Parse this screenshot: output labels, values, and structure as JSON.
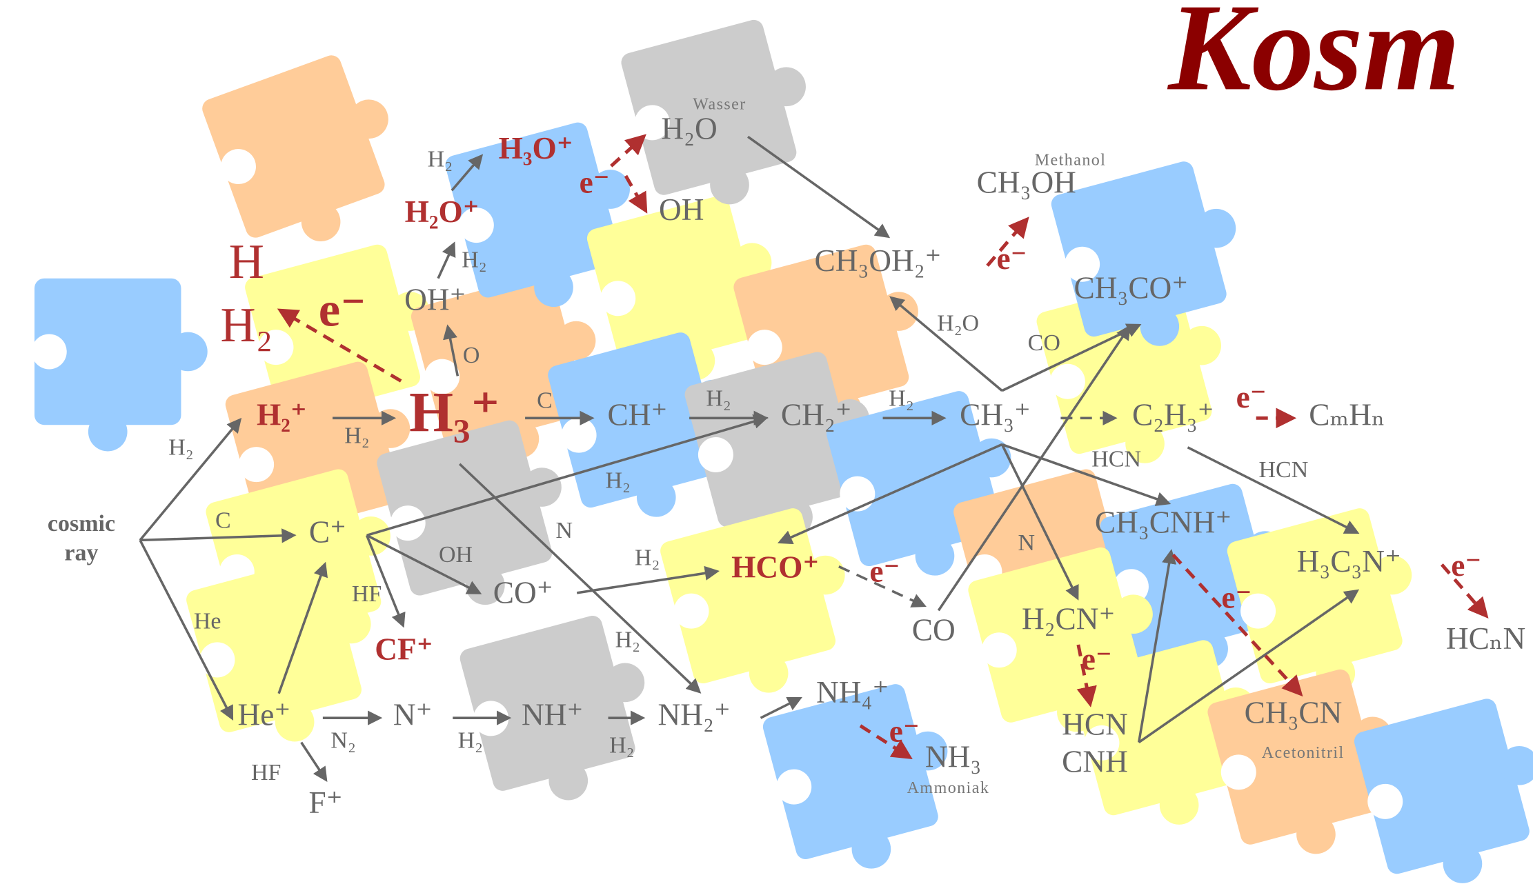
{
  "title": "Kosm",
  "species": [
    {
      "lines": [
        "cosmic",
        "ray"
      ]
    },
    {
      "label": "H₂⁺"
    },
    {
      "label": "H₃⁺"
    },
    {
      "label": "H"
    },
    {
      "label": "H₂"
    },
    {
      "label": "e⁻"
    },
    {
      "label": "OH⁺"
    },
    {
      "label": "H₂O⁺"
    },
    {
      "label": "H₃O⁺"
    },
    {
      "label": "H₂O"
    },
    {
      "label": "Wasser"
    },
    {
      "label": "OH"
    },
    {
      "label": "e⁻"
    },
    {
      "label": "CH⁺"
    },
    {
      "label": "CH₂⁺"
    },
    {
      "label": "CH₃⁺"
    },
    {
      "label": "C₂H₃⁺"
    },
    {
      "label": "CₘHₙ"
    },
    {
      "label": "e⁻"
    },
    {
      "label": "CH₃OH₂⁺"
    },
    {
      "label": "CH₃OH"
    },
    {
      "label": "Methanol"
    },
    {
      "label": "e⁻"
    },
    {
      "label": "CH₃CO⁺"
    },
    {
      "label": "C⁺"
    },
    {
      "label": "CO⁺"
    },
    {
      "label": "CF⁺"
    },
    {
      "label": "HCO⁺"
    },
    {
      "label": "e⁻"
    },
    {
      "label": "CO"
    },
    {
      "label": "He⁺"
    },
    {
      "label": "F⁺"
    },
    {
      "label": "N⁺"
    },
    {
      "label": "NH⁺"
    },
    {
      "label": "NH₂⁺"
    },
    {
      "label": "NH₄⁺"
    },
    {
      "label": "e⁻"
    },
    {
      "label": "NH₃"
    },
    {
      "label": "Ammoniak"
    },
    {
      "label": "CH₃CNH⁺"
    },
    {
      "label": "H₂CN⁺"
    },
    {
      "label": "e⁻"
    },
    {
      "lines": [
        "HCN",
        "CNH"
      ]
    },
    {
      "label": "e⁻"
    },
    {
      "label": "CH₃CN"
    },
    {
      "label": "Acetonitril"
    },
    {
      "label": "H₃C₃N⁺"
    },
    {
      "label": "e⁻"
    },
    {
      "label": "HCₙN"
    }
  ],
  "reagents": [
    "H₂",
    "C",
    "He",
    "H₂",
    "H₂",
    "H₂",
    "O",
    "C",
    "H₂",
    "H₂",
    "H₂",
    "H₂O",
    "CO",
    "HCN",
    "HCN",
    "N",
    "OH",
    "HF",
    "H₂",
    "H₂",
    "N",
    "N₂",
    "H₂",
    "H₂",
    "HF"
  ]
}
